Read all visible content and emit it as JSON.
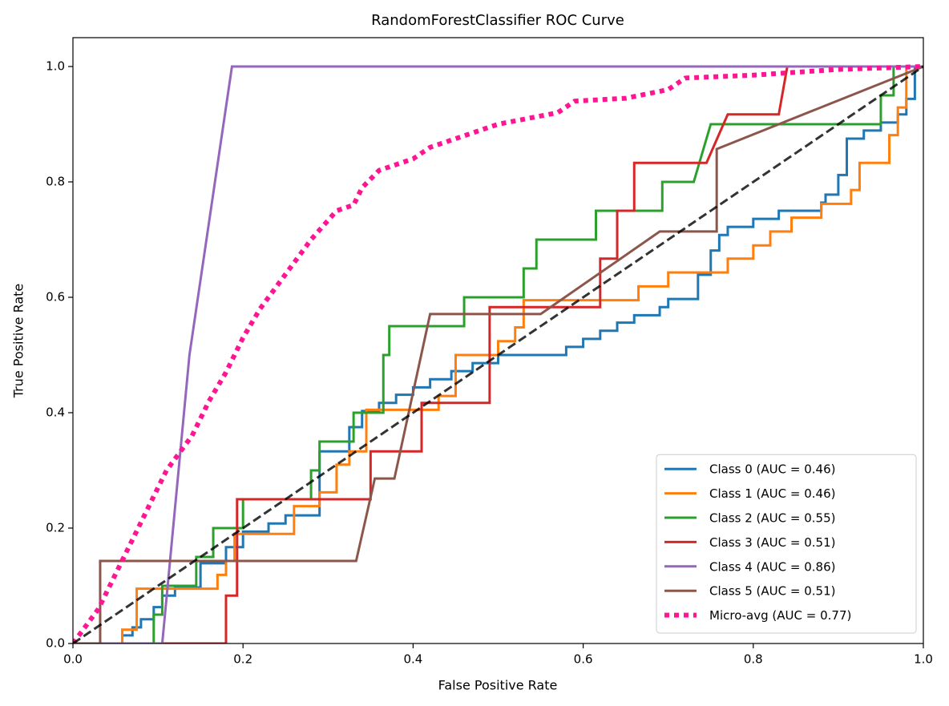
{
  "chart_data": {
    "type": "line",
    "title": "RandomForestClassifier ROC Curve",
    "xlabel": "False Positive Rate",
    "ylabel": "True Positive Rate",
    "xlim": [
      0,
      1
    ],
    "ylim": [
      0,
      1.05
    ],
    "xticks": [
      {
        "value": 0,
        "label": "0.0"
      },
      0.2,
      0.4,
      0.6,
      0.8,
      {
        "value": 1,
        "label": "1.0"
      }
    ],
    "yticks": [
      {
        "value": 0,
        "label": "0.0"
      },
      0.2,
      0.4,
      0.6,
      0.8,
      {
        "value": 1,
        "label": "1.0"
      }
    ],
    "legend": "lower right",
    "diagonal": {
      "x": [
        0,
        1
      ],
      "y": [
        0,
        1
      ],
      "color": "#000000",
      "style": "dashed"
    },
    "series": [
      {
        "name": "Class 0 (AUC = 0.46)",
        "color": "#1f77b4",
        "style": "solid",
        "x": [
          0,
          0.058,
          0.058,
          0.07,
          0.07,
          0.08,
          0.08,
          0.095,
          0.095,
          0.105,
          0.105,
          0.12,
          0.12,
          0.15,
          0.15,
          0.18,
          0.18,
          0.2,
          0.2,
          0.23,
          0.23,
          0.25,
          0.25,
          0.29,
          0.29,
          0.325,
          0.325,
          0.34,
          0.34,
          0.36,
          0.36,
          0.38,
          0.38,
          0.4,
          0.4,
          0.42,
          0.42,
          0.445,
          0.445,
          0.47,
          0.47,
          0.5,
          0.5,
          0.58,
          0.58,
          0.6,
          0.6,
          0.62,
          0.62,
          0.64,
          0.64,
          0.66,
          0.66,
          0.69,
          0.69,
          0.7,
          0.7,
          0.735,
          0.735,
          0.75,
          0.75,
          0.76,
          0.76,
          0.77,
          0.77,
          0.8,
          0.8,
          0.83,
          0.83,
          0.88,
          0.88,
          0.885,
          0.885,
          0.9,
          0.9,
          0.91,
          0.91,
          0.93,
          0.93,
          0.95,
          0.95,
          0.97,
          0.97,
          0.98,
          0.98,
          0.99,
          0.99,
          1
        ],
        "y": [
          0,
          0,
          0.014,
          0.014,
          0.028,
          0.028,
          0.042,
          0.042,
          0.063,
          0.063,
          0.083,
          0.083,
          0.097,
          0.097,
          0.139,
          0.139,
          0.167,
          0.167,
          0.194,
          0.194,
          0.208,
          0.208,
          0.222,
          0.222,
          0.333,
          0.333,
          0.375,
          0.375,
          0.403,
          0.403,
          0.417,
          0.417,
          0.431,
          0.431,
          0.444,
          0.444,
          0.458,
          0.458,
          0.472,
          0.472,
          0.486,
          0.486,
          0.5,
          0.5,
          0.514,
          0.514,
          0.528,
          0.528,
          0.542,
          0.542,
          0.556,
          0.556,
          0.569,
          0.569,
          0.583,
          0.583,
          0.597,
          0.597,
          0.639,
          0.639,
          0.681,
          0.681,
          0.708,
          0.708,
          0.722,
          0.722,
          0.736,
          0.736,
          0.75,
          0.75,
          0.764,
          0.764,
          0.778,
          0.778,
          0.812,
          0.812,
          0.875,
          0.875,
          0.889,
          0.889,
          0.903,
          0.903,
          0.917,
          0.917,
          0.944,
          0.944,
          1,
          1
        ]
      },
      {
        "name": "Class 1 (AUC = 0.46)",
        "color": "#ff7f0e",
        "style": "solid",
        "x": [
          0,
          0.058,
          0.058,
          0.075,
          0.075,
          0.17,
          0.17,
          0.18,
          0.18,
          0.19,
          0.19,
          0.26,
          0.26,
          0.29,
          0.29,
          0.31,
          0.31,
          0.325,
          0.325,
          0.345,
          0.345,
          0.43,
          0.43,
          0.45,
          0.45,
          0.5,
          0.5,
          0.52,
          0.52,
          0.53,
          0.53,
          0.665,
          0.665,
          0.7,
          0.7,
          0.77,
          0.77,
          0.8,
          0.8,
          0.82,
          0.82,
          0.845,
          0.845,
          0.88,
          0.88,
          0.915,
          0.915,
          0.925,
          0.925,
          0.96,
          0.96,
          0.97,
          0.97,
          0.98,
          0.98,
          1
        ],
        "y": [
          0,
          0,
          0.024,
          0.024,
          0.095,
          0.095,
          0.119,
          0.119,
          0.143,
          0.143,
          0.19,
          0.19,
          0.238,
          0.238,
          0.262,
          0.262,
          0.31,
          0.31,
          0.333,
          0.333,
          0.405,
          0.405,
          0.429,
          0.429,
          0.5,
          0.5,
          0.524,
          0.524,
          0.548,
          0.548,
          0.595,
          0.595,
          0.619,
          0.619,
          0.643,
          0.643,
          0.667,
          0.667,
          0.69,
          0.69,
          0.714,
          0.714,
          0.738,
          0.738,
          0.762,
          0.762,
          0.786,
          0.786,
          0.833,
          0.833,
          0.881,
          0.881,
          0.929,
          0.929,
          1,
          1
        ]
      },
      {
        "name": "Class 2 (AUC = 0.55)",
        "color": "#2ca02c",
        "style": "solid",
        "x": [
          0,
          0.095,
          0.095,
          0.105,
          0.105,
          0.145,
          0.145,
          0.165,
          0.165,
          0.2,
          0.2,
          0.28,
          0.28,
          0.29,
          0.29,
          0.33,
          0.33,
          0.365,
          0.365,
          0.372,
          0.372,
          0.46,
          0.46,
          0.53,
          0.53,
          0.545,
          0.545,
          0.615,
          0.615,
          0.693,
          0.693,
          0.73,
          0.75,
          0.95,
          0.95,
          0.965,
          0.965,
          1
        ],
        "y": [
          0,
          0,
          0.05,
          0.05,
          0.1,
          0.1,
          0.15,
          0.15,
          0.2,
          0.2,
          0.25,
          0.25,
          0.3,
          0.3,
          0.35,
          0.35,
          0.4,
          0.4,
          0.5,
          0.5,
          0.55,
          0.55,
          0.6,
          0.6,
          0.65,
          0.65,
          0.7,
          0.7,
          0.75,
          0.75,
          0.8,
          0.8,
          0.9,
          0.9,
          0.95,
          0.95,
          1,
          1
        ]
      },
      {
        "name": "Class 3 (AUC = 0.51)",
        "color": "#d62728",
        "style": "solid",
        "x": [
          0,
          0.18,
          0.18,
          0.193,
          0.193,
          0.35,
          0.35,
          0.41,
          0.41,
          0.49,
          0.49,
          0.62,
          0.62,
          0.64,
          0.64,
          0.66,
          0.66,
          0.745,
          0.77,
          0.83,
          0.84,
          1
        ],
        "y": [
          0,
          0,
          0.083,
          0.083,
          0.25,
          0.25,
          0.333,
          0.333,
          0.417,
          0.417,
          0.583,
          0.583,
          0.667,
          0.667,
          0.75,
          0.75,
          0.833,
          0.833,
          0.917,
          0.917,
          1,
          1
        ]
      },
      {
        "name": "Class 4 (AUC = 0.86)",
        "color": "#9467bd",
        "style": "solid",
        "x": [
          0,
          0.105,
          0.137,
          0.187,
          1
        ],
        "y": [
          0,
          0,
          0.5,
          1,
          1
        ]
      },
      {
        "name": "Class 5 (AUC = 0.51)",
        "color": "#8c564b",
        "style": "solid",
        "x": [
          0,
          0.032,
          0.032,
          0.333,
          0.355,
          0.378,
          0.42,
          0.55,
          0.69,
          0.757,
          0.757,
          1
        ],
        "y": [
          0,
          0,
          0.143,
          0.143,
          0.286,
          0.286,
          0.571,
          0.571,
          0.714,
          0.714,
          0.857,
          1
        ]
      },
      {
        "name": "Micro-avg (AUC = 0.77)",
        "color": "#ff1493",
        "style": "dotted",
        "x": [
          0,
          0.01,
          0.03,
          0.05,
          0.07,
          0.09,
          0.11,
          0.14,
          0.16,
          0.18,
          0.2,
          0.22,
          0.25,
          0.28,
          0.31,
          0.33,
          0.34,
          0.36,
          0.4,
          0.42,
          0.46,
          0.5,
          0.57,
          0.59,
          0.65,
          0.7,
          0.72,
          0.8,
          0.9,
          1
        ],
        "y": [
          0,
          0.02,
          0.06,
          0.12,
          0.18,
          0.24,
          0.3,
          0.36,
          0.42,
          0.47,
          0.53,
          0.58,
          0.64,
          0.7,
          0.75,
          0.76,
          0.79,
          0.82,
          0.84,
          0.86,
          0.88,
          0.9,
          0.92,
          0.94,
          0.945,
          0.96,
          0.98,
          0.985,
          0.995,
          1
        ]
      }
    ]
  }
}
